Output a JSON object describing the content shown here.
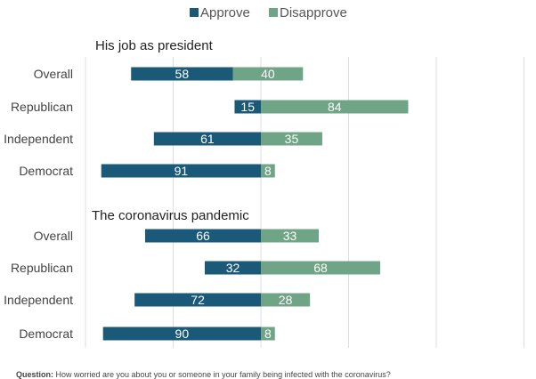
{
  "chart_data": {
    "type": "bar",
    "layout": "diverging-stacked-horizontal",
    "series": [
      {
        "name": "Approve",
        "color": "#1a5a78"
      },
      {
        "name": "Disapprove",
        "color": "#70a487"
      }
    ],
    "legend_position": "top-center",
    "grid": true,
    "xlim": [
      -100,
      100
    ],
    "panels": [
      {
        "title": "His job as president",
        "categories": [
          "Overall",
          "Republican",
          "Independent",
          "Democrat"
        ],
        "approve": [
          58,
          15,
          61,
          91
        ],
        "disapprove": [
          40,
          84,
          35,
          8
        ],
        "offset": [
          -16,
          0,
          0,
          0
        ]
      },
      {
        "title": "The coronavirus pandemic",
        "categories": [
          "Overall",
          "Republican",
          "Independent",
          "Democrat"
        ],
        "approve": [
          66,
          32,
          72,
          90
        ],
        "disapprove": [
          33,
          68,
          28,
          8
        ],
        "offset": [
          0,
          0,
          0,
          0
        ]
      }
    ]
  },
  "footnote": {
    "label": "Question:",
    "text": "How worried are you about you or someone in your family being infected with the coronavirus?"
  }
}
